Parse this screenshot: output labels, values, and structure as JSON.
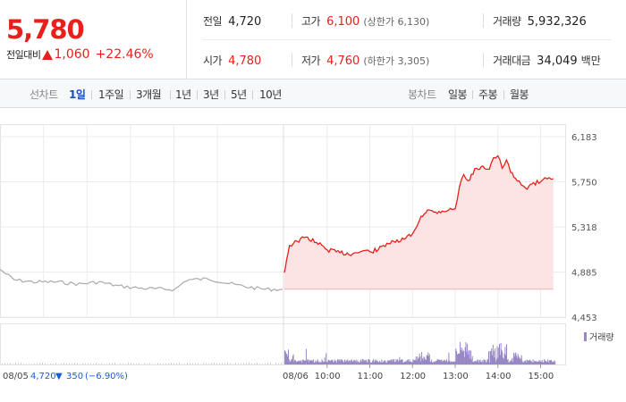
{
  "quote": {
    "price": "5,780",
    "change_label": "전일대비",
    "change_value": "1,060",
    "change_pct": "+22.46%",
    "color_up": "#e8201c",
    "color_down": "#1a5bd8"
  },
  "stats": {
    "prev_close": {
      "label": "전일",
      "value": "4,720"
    },
    "open": {
      "label": "시가",
      "value": "4,780"
    },
    "high": {
      "label": "고가",
      "value": "6,100",
      "sub": "(상한가 6,130)"
    },
    "low": {
      "label": "저가",
      "value": "4,760",
      "sub": "(하한가 3,305)"
    },
    "volume": {
      "label": "거래량",
      "value": "5,932,326"
    },
    "turnover": {
      "label": "거래대금",
      "value": "34,049",
      "unit": "백만"
    }
  },
  "tabs": {
    "line_header": "선차트",
    "line": [
      "1일",
      "1주일",
      "3개월",
      "1년",
      "3년",
      "5년",
      "10년"
    ],
    "candle_header": "봉차트",
    "candle": [
      "일봉",
      "주봉",
      "월봉"
    ],
    "active": "1일"
  },
  "chart_data": {
    "type": "line",
    "y_ticks": [
      "6,183",
      "5,750",
      "5,318",
      "4,885",
      "4,453"
    ],
    "y_tick_values": [
      6183,
      5750,
      5318,
      4885,
      4453
    ],
    "ylim": [
      4453,
      6183
    ],
    "prev_day": {
      "date": "08/05",
      "close": "4,720",
      "change_arrow": "▼",
      "change": "350",
      "change_pct": "(−6.90%)",
      "color": "#aaaaaa",
      "points": [
        [
          0,
          4910
        ],
        [
          0.05,
          4810
        ],
        [
          0.12,
          4790
        ],
        [
          0.2,
          4790
        ],
        [
          0.28,
          4770
        ],
        [
          0.35,
          4790
        ],
        [
          0.42,
          4750
        ],
        [
          0.5,
          4730
        ],
        [
          0.58,
          4720
        ],
        [
          0.62,
          4720
        ],
        [
          0.66,
          4810
        ],
        [
          0.74,
          4820
        ],
        [
          0.82,
          4770
        ],
        [
          0.88,
          4740
        ],
        [
          0.94,
          4720
        ],
        [
          1.0,
          4720
        ]
      ]
    },
    "today": {
      "date": "08/06",
      "times": [
        "10:00",
        "11:00",
        "12:00",
        "13:00",
        "14:00",
        "15:00"
      ],
      "time_values": [
        10,
        11,
        12,
        13,
        14,
        15
      ],
      "color": "#e8201c",
      "fill": "#fde4e4",
      "baseline": 4720,
      "points": [
        [
          9.0,
          4880
        ],
        [
          9.05,
          5000
        ],
        [
          9.12,
          5140
        ],
        [
          9.3,
          5180
        ],
        [
          9.5,
          5220
        ],
        [
          9.75,
          5170
        ],
        [
          10.0,
          5100
        ],
        [
          10.3,
          5070
        ],
        [
          10.6,
          5060
        ],
        [
          10.85,
          5090
        ],
        [
          11.0,
          5080
        ],
        [
          11.2,
          5100
        ],
        [
          11.4,
          5160
        ],
        [
          11.6,
          5170
        ],
        [
          11.8,
          5200
        ],
        [
          12.0,
          5250
        ],
        [
          12.1,
          5320
        ],
        [
          12.2,
          5420
        ],
        [
          12.35,
          5480
        ],
        [
          12.5,
          5460
        ],
        [
          12.7,
          5470
        ],
        [
          12.85,
          5480
        ],
        [
          13.0,
          5490
        ],
        [
          13.1,
          5700
        ],
        [
          13.2,
          5820
        ],
        [
          13.3,
          5760
        ],
        [
          13.5,
          5880
        ],
        [
          13.65,
          5900
        ],
        [
          13.8,
          5870
        ],
        [
          13.9,
          5980
        ],
        [
          14.0,
          6000
        ],
        [
          14.1,
          5880
        ],
        [
          14.2,
          5960
        ],
        [
          14.3,
          5840
        ],
        [
          14.45,
          5760
        ],
        [
          14.55,
          5720
        ],
        [
          14.65,
          5690
        ],
        [
          14.8,
          5730
        ],
        [
          15.0,
          5750
        ],
        [
          15.1,
          5790
        ],
        [
          15.2,
          5790
        ],
        [
          15.3,
          5780
        ]
      ]
    },
    "volume_legend": "거래량",
    "volume_color": "#9686c4"
  }
}
